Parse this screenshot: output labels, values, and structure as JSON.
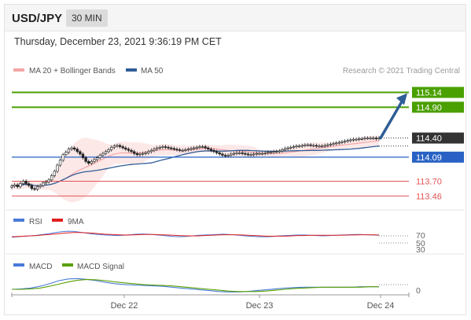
{
  "header": {
    "symbol": "USD/JPY",
    "timeframe": "30 MIN"
  },
  "timestamp": "Thursday, December 23, 2021 9:36:19 PM CET",
  "credit": "Research © 2021 Trading Central",
  "colors": {
    "price_axis_dark": "#333333",
    "blue_level": "#2962c4",
    "target_green": "#4aa000",
    "support_red": "#e05555",
    "ma20": "#f3a6a6",
    "ma50": "#2f5d96",
    "rsi": "#4a7bd8",
    "rsi_ma": "#e02020",
    "macd": "#4a7bd8",
    "macd_signal": "#58a000"
  },
  "chart_data": [
    {
      "type": "candlestick",
      "title": "USD/JPY 30 MIN",
      "ylim": [
        113.3,
        115.3
      ],
      "x_ticks": [
        "Dec 22",
        "Dec 23",
        "Dec 24"
      ],
      "legend": [
        {
          "name": "MA 20 + Bollinger Bands",
          "color": "#f3a6a6"
        },
        {
          "name": "MA 50",
          "color": "#2f5d96"
        }
      ],
      "last_price": 114.4,
      "pivot": 114.09,
      "resistances": [
        114.9,
        115.14
      ],
      "supports": [
        113.7,
        113.46
      ],
      "close": [
        113.62,
        113.64,
        113.61,
        113.66,
        113.7,
        113.66,
        113.63,
        113.58,
        113.57,
        113.61,
        113.63,
        113.67,
        113.69,
        113.72,
        113.79,
        113.86,
        113.96,
        114.04,
        114.13,
        114.17,
        114.22,
        114.24,
        114.22,
        114.18,
        114.14,
        114.08,
        114.02,
        113.99,
        114.02,
        114.05,
        114.08,
        114.12,
        114.15,
        114.18,
        114.21,
        114.25,
        114.27,
        114.28,
        114.26,
        114.24,
        114.22,
        114.2,
        114.18,
        114.15,
        114.13,
        114.14,
        114.15,
        114.16,
        114.18,
        114.2,
        114.22,
        114.24,
        114.25,
        114.26,
        114.25,
        114.24,
        114.23,
        114.22,
        114.21,
        114.2,
        114.2,
        114.21,
        114.22,
        114.23,
        114.24,
        114.25,
        114.26,
        114.26,
        114.24,
        114.22,
        114.2,
        114.18,
        114.16,
        114.14,
        114.12,
        114.11,
        114.12,
        114.14,
        114.15,
        114.16,
        114.16,
        114.15,
        114.14,
        114.13,
        114.13,
        114.14,
        114.15,
        114.15,
        114.15,
        114.16,
        114.17,
        114.17,
        114.18,
        114.18,
        114.19,
        114.21,
        114.23,
        114.24,
        114.25,
        114.26,
        114.27,
        114.27,
        114.28,
        114.29,
        114.29,
        114.28,
        114.28,
        114.27,
        114.27,
        114.27,
        114.28,
        114.29,
        114.3,
        114.31,
        114.32,
        114.33,
        114.34,
        114.35,
        114.36,
        114.37,
        114.38,
        114.38,
        114.39,
        114.39,
        114.4,
        114.4,
        114.4,
        114.4,
        114.39,
        114.4
      ]
    },
    {
      "type": "line",
      "title": "RSI",
      "ticks": [
        70,
        50,
        30
      ],
      "series": [
        {
          "name": "RSI",
          "values": [
            45,
            47,
            49,
            50,
            52,
            55,
            58,
            62,
            65,
            67,
            66,
            63,
            60,
            57,
            55,
            53,
            52,
            51,
            52,
            54,
            56,
            57,
            56,
            54,
            52,
            50,
            48,
            47,
            48,
            50,
            52,
            53,
            54,
            55,
            56,
            55,
            53,
            51,
            49,
            48,
            47,
            47,
            48,
            50,
            51,
            52,
            53,
            53,
            52,
            51,
            50,
            51,
            52,
            53,
            54,
            55,
            55,
            54,
            53,
            52
          ]
        },
        {
          "name": "9MA",
          "values": [
            47,
            48,
            49,
            50,
            51,
            53,
            55,
            57,
            59,
            61,
            62,
            62,
            61,
            60,
            58,
            56,
            55,
            54,
            53,
            53,
            54,
            55,
            55,
            55,
            54,
            53,
            52,
            51,
            50,
            50,
            50,
            51,
            52,
            53,
            54,
            54,
            54,
            53,
            52,
            51,
            50,
            49,
            49,
            49,
            49,
            50,
            51,
            51,
            52,
            52,
            52,
            52,
            52,
            52,
            53,
            53,
            54,
            54,
            54,
            53
          ]
        }
      ]
    },
    {
      "type": "line",
      "title": "MACD",
      "ticks": [
        0
      ],
      "series": [
        {
          "name": "MACD",
          "values": [
            0.0,
            0.01,
            0.03,
            0.07,
            0.13,
            0.2,
            0.24,
            0.25,
            0.23,
            0.2,
            0.16,
            0.13,
            0.11,
            0.1,
            0.09,
            0.08,
            0.07,
            0.05,
            0.03,
            0.01,
            -0.01,
            -0.03,
            -0.05,
            -0.06,
            -0.06,
            -0.05,
            -0.03,
            -0.01,
            0.01,
            0.03,
            0.04,
            0.05,
            0.05,
            0.05,
            0.05,
            0.05,
            0.05,
            0.06,
            0.06,
            0.06
          ]
        },
        {
          "name": "MACD Signal",
          "values": [
            0.0,
            0.0,
            0.01,
            0.03,
            0.07,
            0.12,
            0.17,
            0.21,
            0.23,
            0.22,
            0.2,
            0.17,
            0.15,
            0.13,
            0.11,
            0.1,
            0.09,
            0.08,
            0.06,
            0.04,
            0.02,
            0.0,
            -0.02,
            -0.04,
            -0.05,
            -0.05,
            -0.05,
            -0.04,
            -0.02,
            0.0,
            0.02,
            0.03,
            0.04,
            0.05,
            0.05,
            0.05,
            0.05,
            0.05,
            0.06,
            0.06
          ]
        }
      ]
    }
  ]
}
